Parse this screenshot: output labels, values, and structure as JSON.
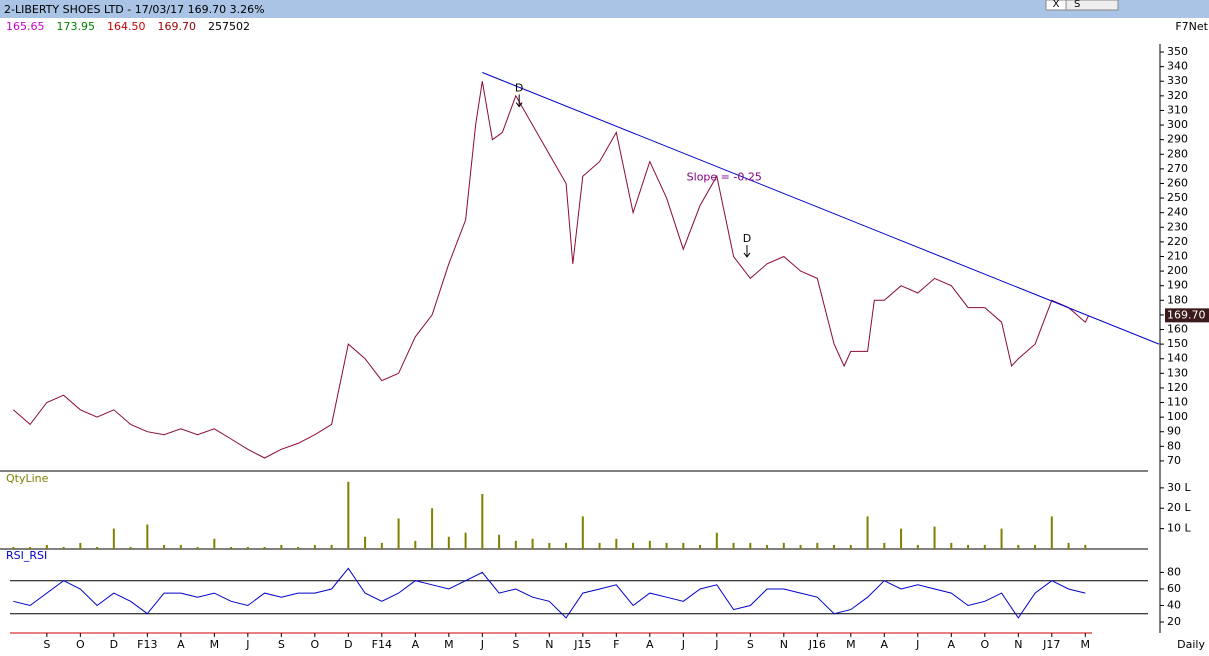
{
  "header": {
    "title": "2-LIBERTY SHOES LTD - 17/03/17 169.70 3.26%",
    "quotes": [
      {
        "text": "165.65",
        "color": "#cc00cc"
      },
      {
        "text": "173.95",
        "color": "#008000"
      },
      {
        "text": "164.50",
        "color": "#cc0000"
      },
      {
        "text": "169.70",
        "color": "#990000"
      },
      {
        "text": "257502",
        "color": "#000000"
      }
    ],
    "feed": "F7Net",
    "period": "Daily",
    "buttons": [
      "X",
      "S"
    ]
  },
  "chart_data": [
    {
      "type": "line",
      "color": "#8b0a3a",
      "xlim": [
        -0.1,
        34.2
      ],
      "ylim": [
        63.8,
        355.5
      ],
      "xticks": [
        {
          "value": 1,
          "label": "S"
        },
        {
          "value": 2,
          "label": "O"
        },
        {
          "value": 3,
          "label": "D"
        },
        {
          "value": 4,
          "label": "F13"
        },
        {
          "value": 5,
          "label": "A"
        },
        {
          "value": 6,
          "label": "M"
        },
        {
          "value": 7,
          "label": "J"
        },
        {
          "value": 8,
          "label": "S"
        },
        {
          "value": 9,
          "label": "O"
        },
        {
          "value": 10,
          "label": "D"
        },
        {
          "value": 11,
          "label": "F14"
        },
        {
          "value": 12,
          "label": "A"
        },
        {
          "value": 13,
          "label": "M"
        },
        {
          "value": 14,
          "label": "J"
        },
        {
          "value": 15,
          "label": "S"
        },
        {
          "value": 16,
          "label": "N"
        },
        {
          "value": 17,
          "label": "J15"
        },
        {
          "value": 18,
          "label": "F"
        },
        {
          "value": 19,
          "label": "A"
        },
        {
          "value": 20,
          "label": "J"
        },
        {
          "value": 21,
          "label": "J"
        },
        {
          "value": 22,
          "label": "S"
        },
        {
          "value": 23,
          "label": "N"
        },
        {
          "value": 24,
          "label": "J16"
        },
        {
          "value": 25,
          "label": "M"
        },
        {
          "value": 26,
          "label": "A"
        },
        {
          "value": 27,
          "label": "J"
        },
        {
          "value": 28,
          "label": "A"
        },
        {
          "value": 29,
          "label": "O"
        },
        {
          "value": 30,
          "label": "N"
        },
        {
          "value": 31,
          "label": "J17"
        },
        {
          "value": 32,
          "label": "M"
        }
      ],
      "yticks": [
        70,
        80,
        90,
        100,
        110,
        120,
        130,
        140,
        150,
        160,
        170,
        180,
        190,
        200,
        210,
        220,
        230,
        240,
        250,
        260,
        270,
        280,
        290,
        300,
        310,
        320,
        330,
        340,
        350
      ],
      "x": [
        0,
        0.5,
        1,
        1.5,
        2,
        2.5,
        3,
        3.5,
        4,
        4.5,
        5,
        5.5,
        6,
        6.5,
        7,
        7.5,
        8,
        8.5,
        9,
        9.5,
        10,
        10.5,
        11,
        11.5,
        12,
        12.5,
        13,
        13.5,
        13.8,
        14,
        14.3,
        14.6,
        15,
        15.5,
        16,
        16.5,
        16.7,
        17,
        17.5,
        18,
        18.5,
        19,
        19.5,
        20,
        20.5,
        21,
        21.5,
        22,
        22.5,
        23,
        23.5,
        24,
        24.5,
        24.8,
        25,
        25.5,
        25.7,
        26,
        26.5,
        27,
        27.5,
        28,
        28.5,
        29,
        29.5,
        29.8,
        30,
        30.5,
        31,
        31.5,
        32,
        32.1
      ],
      "values": [
        105,
        95,
        110,
        115,
        105,
        100,
        105,
        95,
        90,
        88,
        92,
        88,
        92,
        85,
        78,
        72,
        78,
        82,
        88,
        95,
        150,
        140,
        125,
        130,
        155,
        170,
        205,
        235,
        300,
        330,
        290,
        295,
        320,
        300,
        280,
        260,
        205,
        265,
        275,
        295,
        240,
        275,
        250,
        215,
        245,
        265,
        210,
        195,
        205,
        210,
        200,
        195,
        150,
        135,
        145,
        145,
        180,
        180,
        190,
        185,
        195,
        190,
        175,
        175,
        165,
        135,
        140,
        150,
        180,
        175,
        165,
        169.7
      ],
      "last_label": {
        "value": 169.7,
        "label": "169.70"
      },
      "trendline": {
        "color": "#0000cc",
        "x": [
          14.0,
          34.2
        ],
        "values": [
          336,
          150
        ]
      },
      "annotations": [
        {
          "text": "D",
          "x": 15.1,
          "y": 325
        },
        {
          "text": "D",
          "x": 21.9,
          "y": 222
        },
        {
          "text": "Slope = -0.25",
          "x": 20.1,
          "y": 264
        }
      ]
    },
    {
      "type": "bar",
      "title": "QtyLine",
      "color": "#808000",
      "ylim": [
        0,
        37.3
      ],
      "yticks": [
        {
          "value": 10,
          "label": "10 L"
        },
        {
          "value": 20,
          "label": "20 L"
        },
        {
          "value": 30,
          "label": "30 L"
        }
      ],
      "x": [
        0,
        0.5,
        1,
        1.5,
        2,
        2.5,
        3,
        3.5,
        4,
        4.5,
        5,
        5.5,
        6,
        6.5,
        7,
        7.5,
        8,
        8.5,
        9,
        9.5,
        10,
        10.5,
        11,
        11.5,
        12,
        12.5,
        13,
        13.5,
        14,
        14.5,
        15,
        15.5,
        16,
        16.5,
        17,
        17.5,
        18,
        18.5,
        19,
        19.5,
        20,
        20.5,
        21,
        21.5,
        22,
        22.5,
        23,
        23.5,
        24,
        24.5,
        25,
        25.5,
        26,
        26.5,
        27,
        27.5,
        28,
        28.5,
        29,
        29.5,
        30,
        30.5,
        31,
        31.5,
        32
      ],
      "values": [
        1,
        1,
        2,
        1,
        3,
        1,
        10,
        1,
        12,
        2,
        2,
        1,
        5,
        1,
        1,
        1,
        2,
        1,
        2,
        2,
        33,
        6,
        3,
        15,
        4,
        20,
        6,
        8,
        27,
        7,
        4,
        5,
        3,
        3,
        16,
        3,
        5,
        3,
        4,
        3,
        3,
        2,
        8,
        3,
        3,
        2,
        3,
        2,
        3,
        2,
        2,
        16,
        3,
        10,
        2,
        11,
        3,
        2,
        2,
        10,
        2,
        2,
        16,
        3,
        2
      ]
    },
    {
      "type": "line",
      "title": "RSI_RSI",
      "color": "#0000cc",
      "ylim": [
        10.3,
        89
      ],
      "levels": [
        30,
        70
      ],
      "yticks": [
        20,
        40,
        60,
        80
      ],
      "x": [
        0,
        0.5,
        1,
        1.5,
        2,
        2.5,
        3,
        3.5,
        4,
        4.5,
        5,
        5.5,
        6,
        6.5,
        7,
        7.5,
        8,
        8.5,
        9,
        9.5,
        10,
        10.5,
        11,
        11.5,
        12,
        12.5,
        13,
        13.5,
        14,
        14.5,
        15,
        15.5,
        16,
        16.5,
        17,
        17.5,
        18,
        18.5,
        19,
        19.5,
        20,
        20.5,
        21,
        21.5,
        22,
        22.5,
        23,
        23.5,
        24,
        24.5,
        25,
        25.5,
        26,
        26.5,
        27,
        27.5,
        28,
        28.5,
        29,
        29.5,
        30,
        30.5,
        31,
        31.5,
        32
      ],
      "values": [
        45,
        40,
        55,
        70,
        60,
        40,
        55,
        45,
        30,
        55,
        55,
        50,
        55,
        45,
        40,
        55,
        50,
        55,
        55,
        60,
        85,
        55,
        45,
        55,
        70,
        65,
        60,
        70,
        80,
        55,
        60,
        50,
        45,
        25,
        55,
        60,
        65,
        40,
        55,
        50,
        45,
        60,
        65,
        35,
        40,
        60,
        60,
        55,
        50,
        30,
        35,
        50,
        70,
        60,
        65,
        60,
        55,
        40,
        45,
        55,
        25,
        55,
        70,
        60,
        55
      ]
    }
  ]
}
